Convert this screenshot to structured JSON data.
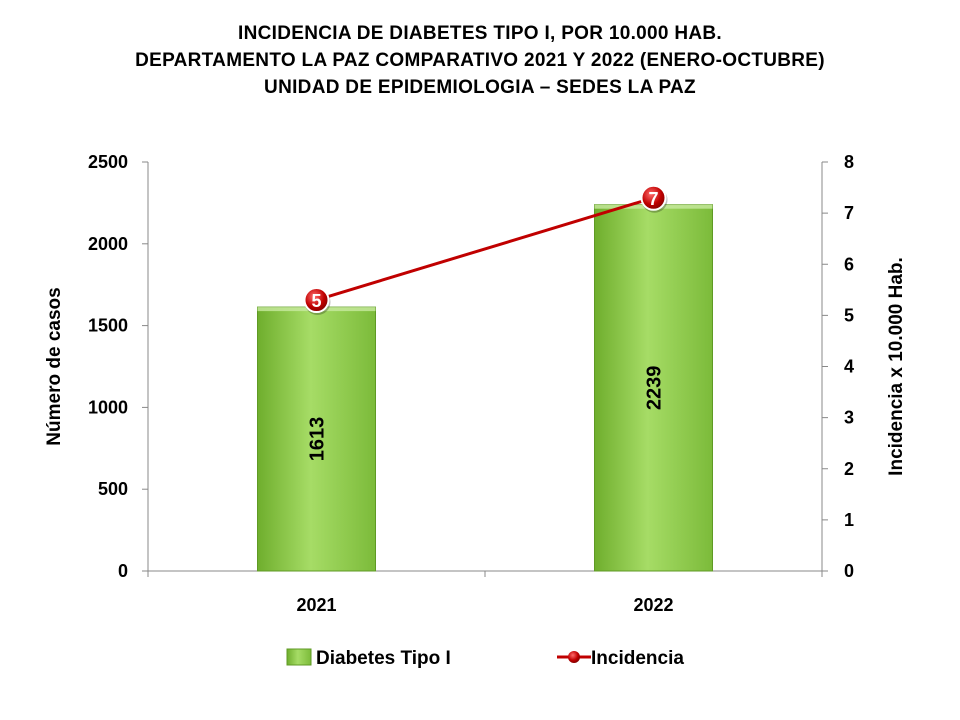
{
  "chart_data": {
    "type": "bar",
    "title_lines": [
      "INCIDENCIA  DE DIABETES  TIPO I, POR 10.000 HAB.",
      "DEPARTAMENTO  LA PAZ COMPARATIVO  2021 Y 2022 (ENERO-OCTUBRE)",
      "UNIDAD DE EPIDEMIOLOGIA – SEDES LA PAZ"
    ],
    "categories": [
      "2021",
      "2022"
    ],
    "ylabel": "Número de casos",
    "y2label": "Incidencia x 10.000 Hab.",
    "ylim": [
      0,
      2500
    ],
    "y_ticks": [
      "0",
      "500",
      "1000",
      "1500",
      "2000",
      "2500"
    ],
    "y2lim": [
      0,
      8
    ],
    "y2_ticks": [
      "0",
      "1",
      "2",
      "3",
      "4",
      "5",
      "6",
      "7",
      "8"
    ],
    "series": [
      {
        "name": "Diabetes Tipo I",
        "kind": "bar",
        "axis": "left",
        "values": [
          1613,
          2239
        ],
        "labels": [
          "1613",
          "2239"
        ],
        "color": "#92d050"
      },
      {
        "name": "Incidencia",
        "kind": "line",
        "axis": "right",
        "values": [
          5.3,
          7.3
        ],
        "labels": [
          "5",
          "7"
        ],
        "color": "#c00000"
      }
    ],
    "legend_position": "bottom",
    "grid": false
  }
}
